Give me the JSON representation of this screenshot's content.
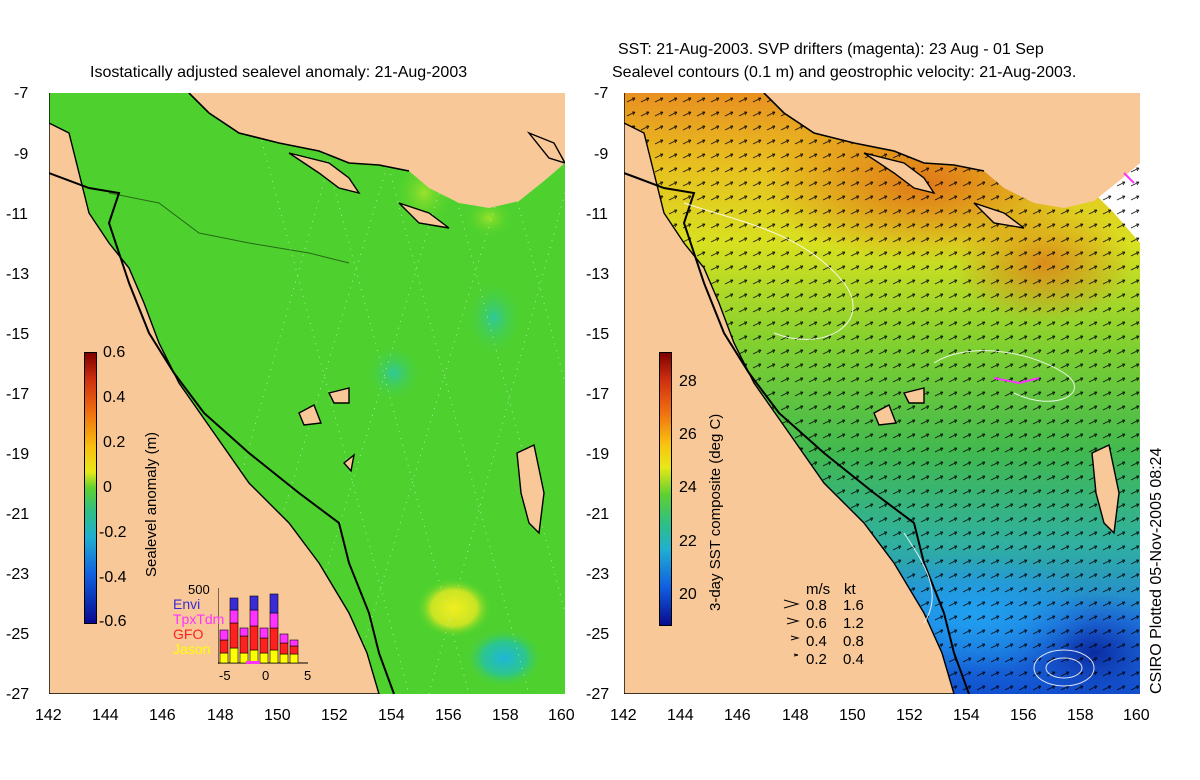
{
  "left_panel": {
    "title": "Isostatically adjusted sealevel anomaly: 21-Aug-2003",
    "y_ticks": [
      "-7",
      "-9",
      "-11",
      "-13",
      "-15",
      "-17",
      "-19",
      "-21",
      "-23",
      "-25",
      "-27"
    ],
    "x_ticks": [
      "142",
      "144",
      "146",
      "148",
      "150",
      "152",
      "154",
      "156",
      "158",
      "160"
    ],
    "colorbar": {
      "label": "Sealevel anomaly (m)",
      "ticks": [
        "0.6",
        "0.4",
        "0.2",
        "0",
        "-0.2",
        "-0.4",
        "-0.6"
      ],
      "range": [
        -0.6,
        0.6
      ]
    },
    "histogram": {
      "ymax_label": "500",
      "x_ticks": [
        "-5",
        "0",
        "5"
      ],
      "missions": [
        {
          "name": "Envi",
          "color": "#3a2bd6"
        },
        {
          "name": "TpxTdm",
          "color": "#ff33ff"
        },
        {
          "name": "GFO",
          "color": "#ff2020"
        },
        {
          "name": "Jason",
          "color": "#ffff00"
        }
      ]
    }
  },
  "right_panel": {
    "title_line1": "SST: 21-Aug-2003. SVP drifters (magenta): 23 Aug - 01 Sep",
    "title_line2": "Sealevel contours (0.1 m) and geostrophic velocity: 21-Aug-2003.",
    "y_ticks": [
      "-7",
      "-9",
      "-11",
      "-13",
      "-15",
      "-17",
      "-19",
      "-21",
      "-23",
      "-25",
      "-27"
    ],
    "x_ticks": [
      "142",
      "144",
      "146",
      "148",
      "150",
      "152",
      "154",
      "156",
      "158",
      "160"
    ],
    "colorbar": {
      "label": "3-day SST composite (deg C)",
      "ticks": [
        "28",
        "26",
        "24",
        "22",
        "20"
      ],
      "range": [
        19,
        29.5
      ]
    },
    "velocity_legend": {
      "header_ms": "m/s",
      "header_kt": "kt",
      "rows": [
        {
          "ms": "0.8",
          "kt": "1.6"
        },
        {
          "ms": "0.6",
          "kt": "1.2"
        },
        {
          "ms": "0.4",
          "kt": "0.8"
        },
        {
          "ms": "0.2",
          "kt": "0.4"
        }
      ]
    },
    "credit": "CSIRO Plotted 05-Nov-2005 08:24"
  },
  "colors": {
    "land": "#f8c898",
    "coast": "#000000",
    "sla_base": "#4ed12e"
  }
}
